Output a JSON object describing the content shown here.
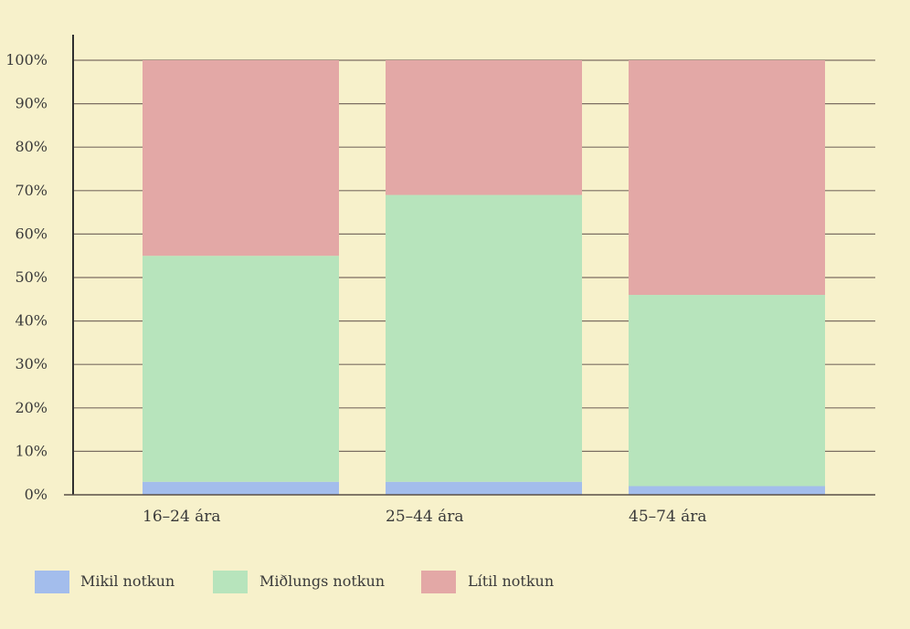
{
  "chart_data": {
    "type": "bar",
    "stacked": true,
    "categories": [
      "16–24 ára",
      "25–44 ára",
      "45–74 ára"
    ],
    "series": [
      {
        "name": "Mikil notkun",
        "values": [
          3,
          3,
          2
        ],
        "color": "#a3bdec"
      },
      {
        "name": "Miðlungs notkun",
        "values": [
          52,
          66,
          44
        ],
        "color": "#b7e4bc"
      },
      {
        "name": "Lítil notkun",
        "values": [
          45,
          31,
          54
        ],
        "color": "#e3a8a6"
      }
    ],
    "ylim": [
      0,
      100
    ],
    "yticks": [
      0,
      10,
      20,
      30,
      40,
      50,
      60,
      70,
      80,
      90,
      100
    ],
    "ytick_labels": [
      "0%",
      "10%",
      "20%",
      "30%",
      "40%",
      "50%",
      "60%",
      "70%",
      "80%",
      "90%",
      "100%"
    ],
    "grid": true,
    "legend_position": "bottom-left",
    "title": "",
    "xlabel": "",
    "ylabel": ""
  }
}
